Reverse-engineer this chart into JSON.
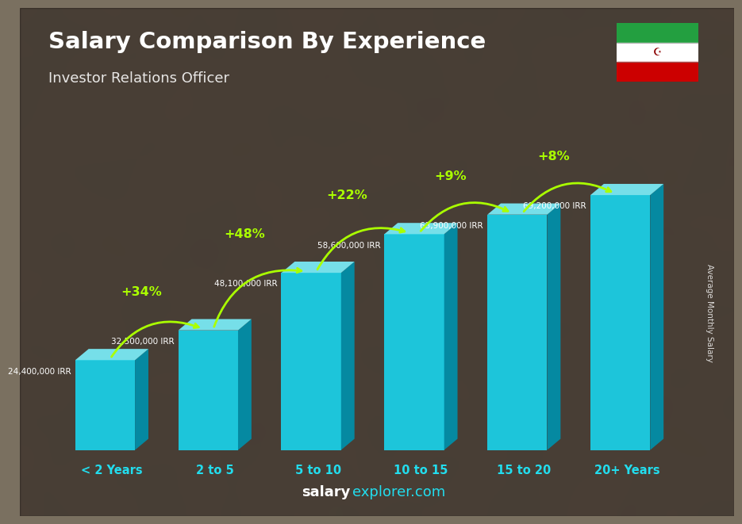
{
  "title": "Salary Comparison By Experience",
  "subtitle": "Investor Relations Officer",
  "categories": [
    "< 2 Years",
    "2 to 5",
    "5 to 10",
    "10 to 15",
    "15 to 20",
    "20+ Years"
  ],
  "values": [
    24400000,
    32500000,
    48100000,
    58600000,
    63900000,
    69200000
  ],
  "value_labels": [
    "24,400,000 IRR",
    "32,500,000 IRR",
    "48,100,000 IRR",
    "58,600,000 IRR",
    "63,900,000 IRR",
    "69,200,000 IRR"
  ],
  "pct_labels": [
    "+34%",
    "+48%",
    "+22%",
    "+9%",
    "+8%"
  ],
  "bar_color_front": "#1ad0e8",
  "bar_color_top": "#7aecf8",
  "bar_color_side": "#0090aa",
  "bg_photo_color": "#7a7060",
  "bg_overlay_alpha": 0.38,
  "ylabel": "Average Monthly Salary",
  "website_bold": "salary",
  "website_normal": "explorer.com",
  "flag_green": "#239f40",
  "flag_white": "#ffffff",
  "flag_red": "#cc0000",
  "pct_color": "#aaff00",
  "arrow_color": "#aaff00",
  "label_color": "#ffffff",
  "title_color": "#ffffff",
  "xlabel_color": "#22ddee",
  "max_val": 80000000
}
